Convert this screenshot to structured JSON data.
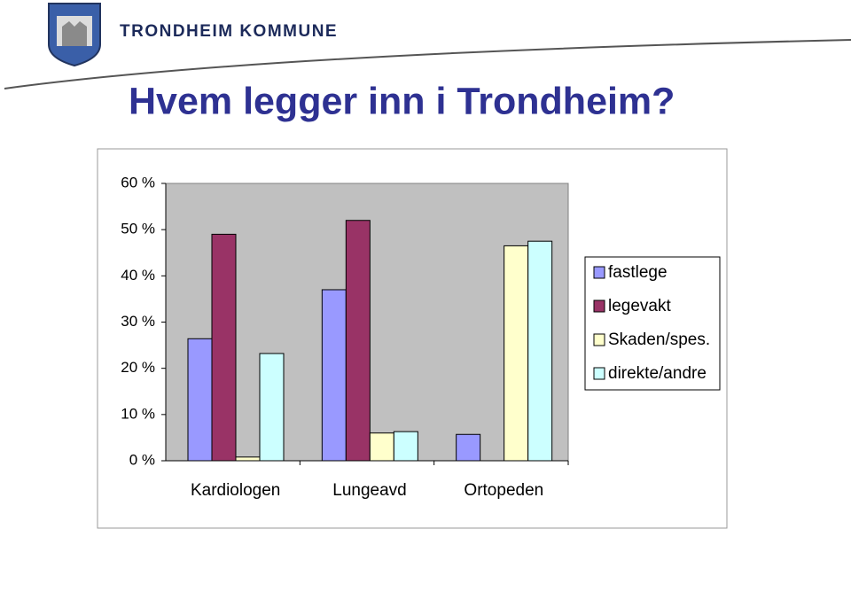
{
  "header": {
    "organization": "TRONDHEIM KOMMUNE"
  },
  "chart_data": {
    "type": "bar",
    "title": "Hvem legger inn i Trondheim?",
    "categories": [
      "Kardiologen",
      "Lungeavd",
      "Ortopeden"
    ],
    "series": [
      {
        "name": "fastlege",
        "color": "#9999ff",
        "values": [
          26.4,
          37,
          5.7
        ]
      },
      {
        "name": "legevakt",
        "color": "#993366",
        "values": [
          49,
          52,
          0
        ]
      },
      {
        "name": "Skaden/spes.",
        "color": "#ffffcc",
        "values": [
          0.8,
          6,
          46.5
        ]
      },
      {
        "name": "direkte/andre",
        "color": "#ccffff",
        "values": [
          23.2,
          6.3,
          47.5
        ]
      }
    ],
    "ylim": [
      0,
      60
    ],
    "yticks": [
      {
        "value": 0,
        "label": "0 %"
      },
      {
        "value": 10,
        "label": "10 %"
      },
      {
        "value": 20,
        "label": "20 %"
      },
      {
        "value": 30,
        "label": "30 %"
      },
      {
        "value": 40,
        "label": "40 %"
      },
      {
        "value": 50,
        "label": "50 %"
      },
      {
        "value": 60,
        "label": "60 %"
      }
    ],
    "grid": false,
    "plot_background": "#c0c0c0",
    "legend": "right"
  }
}
